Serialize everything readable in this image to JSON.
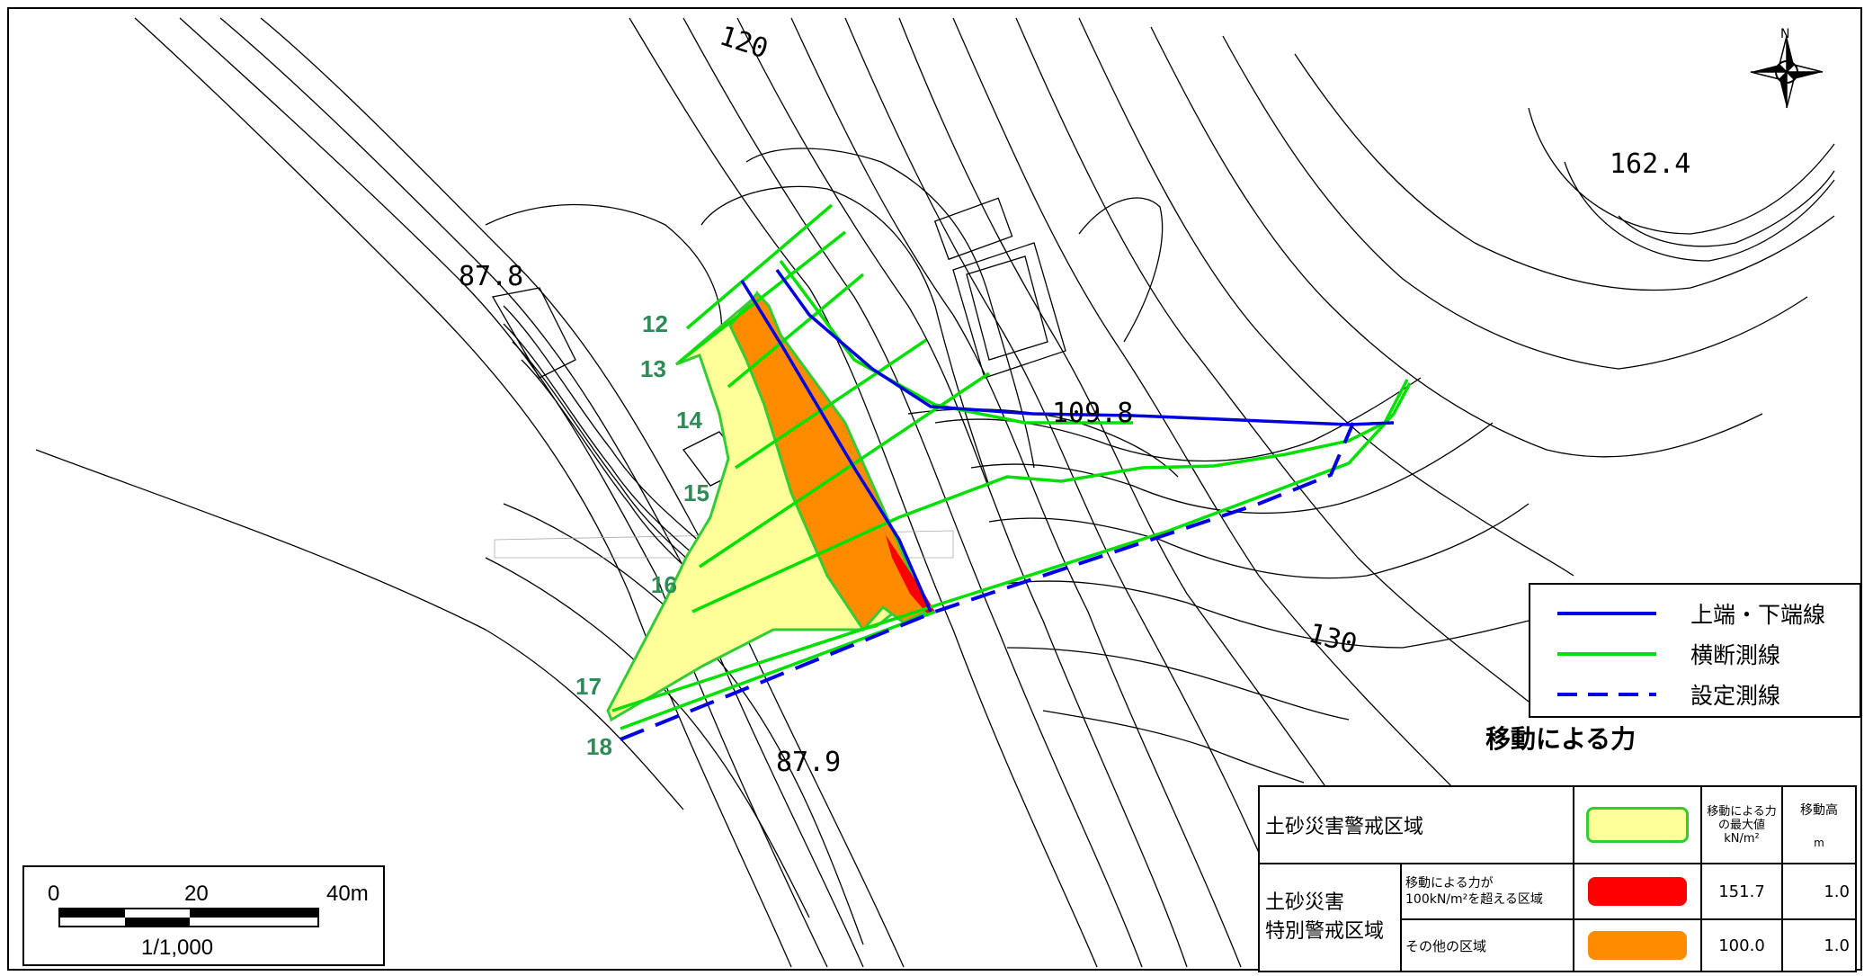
{
  "elevations": {
    "p1": "87.8",
    "p2": "162.4",
    "p3": "109.8",
    "p4": "87.9",
    "c120": "120",
    "c130": "130"
  },
  "sections": [
    "12",
    "13",
    "14",
    "15",
    "16",
    "17",
    "18"
  ],
  "legend": {
    "items": [
      {
        "label": "上端・下端線",
        "color": "#0000e0",
        "style": "solid"
      },
      {
        "label": "横断測線",
        "color": "#00e000",
        "style": "solid"
      },
      {
        "label": "設定測線",
        "color": "#0000e0",
        "style": "dashed"
      }
    ]
  },
  "force_table": {
    "title": "移動による力",
    "header_force": "移動による力の最大値",
    "header_force_unit": "kN/m²",
    "header_height": "移動高",
    "header_height_unit": "m",
    "warning_zone": "土砂災害警戒区域",
    "special_zone_line1": "土砂災害",
    "special_zone_line2": "特別警戒区域",
    "sub_over_line1": "移動による力が",
    "sub_over_line2": "100kN/m²を超える区域",
    "sub_other": "その他の区域",
    "over_force": "151.7",
    "over_height": "1.0",
    "other_force": "100.0",
    "other_height": "1.0",
    "colors": {
      "warning": "#ffff99",
      "warning_border": "#33cc33",
      "over": "#ff0000",
      "other": "#ff8c00"
    }
  },
  "scale": {
    "ticks": [
      "0",
      "20",
      "40m"
    ],
    "ratio": "1/1,000"
  },
  "compass": {
    "north_label": "N"
  }
}
